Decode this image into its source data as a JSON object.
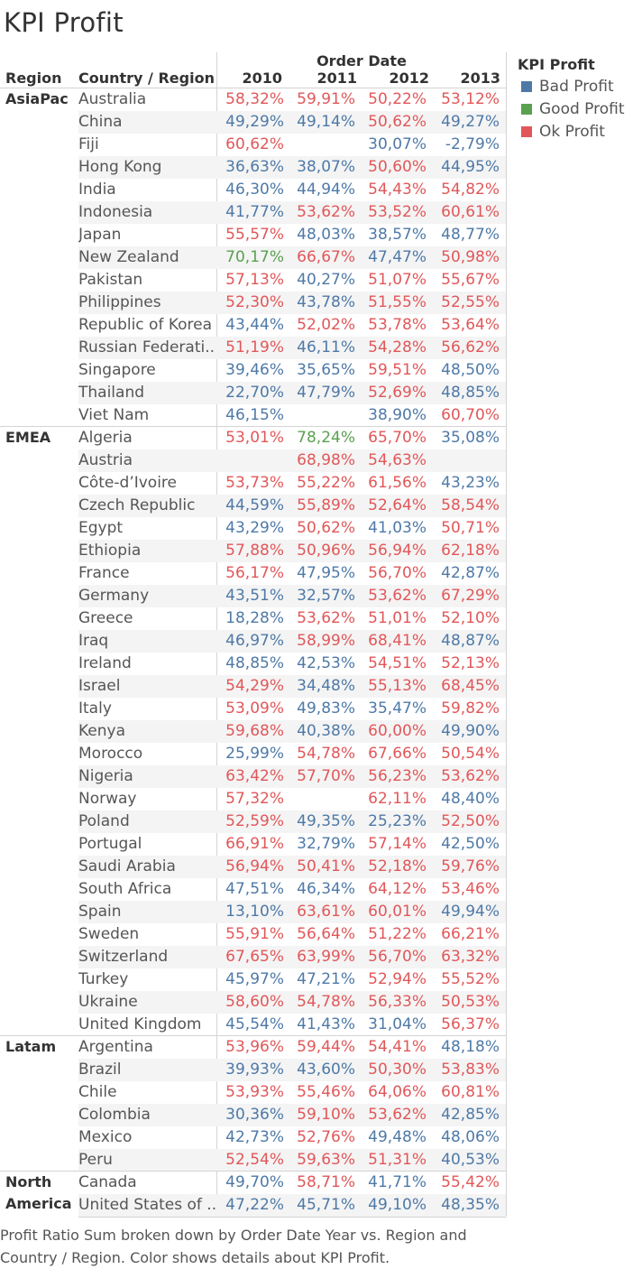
{
  "title": "KPI Profit",
  "header": {
    "region": "Region",
    "country": "Country / Region",
    "column_group": "Order Date",
    "years": [
      "2010",
      "2011",
      "2012",
      "2013"
    ]
  },
  "legend": {
    "title": "KPI Profit",
    "items": [
      {
        "label": "Bad Profit",
        "color": "#4e79a7"
      },
      {
        "label": "Good Profit",
        "color": "#59a14f"
      },
      {
        "label": "Ok Profit",
        "color": "#e15759"
      }
    ]
  },
  "caption_line1": "Profit Ratio Sum broken down by Order Date Year vs. Region and",
  "caption_line2": "Country / Region.  Color shows details about KPI Profit.",
  "chart_data": {
    "type": "table",
    "title": "KPI Profit",
    "columns": [
      "2010",
      "2011",
      "2012",
      "2013"
    ],
    "kpi_colors": {
      "B": "#4e79a7",
      "G": "#59a14f",
      "O": "#e15759"
    },
    "regions": [
      {
        "name": "AsiaPac",
        "rows": [
          {
            "country": "Australia",
            "values": [
              "58,32%",
              "59,91%",
              "50,22%",
              "53,12%"
            ],
            "kpi": [
              "O",
              "O",
              "O",
              "O"
            ]
          },
          {
            "country": "China",
            "values": [
              "49,29%",
              "49,14%",
              "50,62%",
              "49,27%"
            ],
            "kpi": [
              "B",
              "B",
              "O",
              "B"
            ]
          },
          {
            "country": "Fiji",
            "values": [
              "60,62%",
              "",
              "30,07%",
              "-2,79%"
            ],
            "kpi": [
              "O",
              "",
              "B",
              "B"
            ]
          },
          {
            "country": "Hong Kong",
            "values": [
              "36,63%",
              "38,07%",
              "50,60%",
              "44,95%"
            ],
            "kpi": [
              "B",
              "B",
              "O",
              "B"
            ]
          },
          {
            "country": "India",
            "values": [
              "46,30%",
              "44,94%",
              "54,43%",
              "54,82%"
            ],
            "kpi": [
              "B",
              "B",
              "O",
              "O"
            ]
          },
          {
            "country": "Indonesia",
            "values": [
              "41,77%",
              "53,62%",
              "53,52%",
              "60,61%"
            ],
            "kpi": [
              "B",
              "O",
              "O",
              "O"
            ]
          },
          {
            "country": "Japan",
            "values": [
              "55,57%",
              "48,03%",
              "38,57%",
              "48,77%"
            ],
            "kpi": [
              "O",
              "B",
              "B",
              "B"
            ]
          },
          {
            "country": "New Zealand",
            "values": [
              "70,17%",
              "66,67%",
              "47,47%",
              "50,98%"
            ],
            "kpi": [
              "G",
              "O",
              "B",
              "O"
            ]
          },
          {
            "country": "Pakistan",
            "values": [
              "57,13%",
              "40,27%",
              "51,07%",
              "55,67%"
            ],
            "kpi": [
              "O",
              "B",
              "O",
              "O"
            ]
          },
          {
            "country": "Philippines",
            "values": [
              "52,30%",
              "43,78%",
              "51,55%",
              "52,55%"
            ],
            "kpi": [
              "O",
              "B",
              "O",
              "O"
            ]
          },
          {
            "country": "Republic of Korea",
            "values": [
              "43,44%",
              "52,02%",
              "53,78%",
              "53,64%"
            ],
            "kpi": [
              "B",
              "O",
              "O",
              "O"
            ]
          },
          {
            "country": "Russian Federati..",
            "values": [
              "51,19%",
              "46,11%",
              "54,28%",
              "56,62%"
            ],
            "kpi": [
              "O",
              "B",
              "O",
              "O"
            ]
          },
          {
            "country": "Singapore",
            "values": [
              "39,46%",
              "35,65%",
              "59,51%",
              "48,50%"
            ],
            "kpi": [
              "B",
              "B",
              "O",
              "B"
            ]
          },
          {
            "country": "Thailand",
            "values": [
              "22,70%",
              "47,79%",
              "52,69%",
              "48,85%"
            ],
            "kpi": [
              "B",
              "B",
              "O",
              "B"
            ]
          },
          {
            "country": "Viet Nam",
            "values": [
              "46,15%",
              "",
              "38,90%",
              "60,70%"
            ],
            "kpi": [
              "B",
              "",
              "B",
              "O"
            ]
          }
        ]
      },
      {
        "name": "EMEA",
        "rows": [
          {
            "country": "Algeria",
            "values": [
              "53,01%",
              "78,24%",
              "65,70%",
              "35,08%"
            ],
            "kpi": [
              "O",
              "G",
              "O",
              "B"
            ]
          },
          {
            "country": "Austria",
            "values": [
              "",
              "68,98%",
              "54,63%",
              ""
            ],
            "kpi": [
              "",
              "O",
              "O",
              ""
            ]
          },
          {
            "country": "Côte-d’Ivoire",
            "values": [
              "53,73%",
              "55,22%",
              "61,56%",
              "43,23%"
            ],
            "kpi": [
              "O",
              "O",
              "O",
              "B"
            ]
          },
          {
            "country": "Czech Republic",
            "values": [
              "44,59%",
              "55,89%",
              "52,64%",
              "58,54%"
            ],
            "kpi": [
              "B",
              "O",
              "O",
              "O"
            ]
          },
          {
            "country": "Egypt",
            "values": [
              "43,29%",
              "50,62%",
              "41,03%",
              "50,71%"
            ],
            "kpi": [
              "B",
              "O",
              "B",
              "O"
            ]
          },
          {
            "country": "Ethiopia",
            "values": [
              "57,88%",
              "50,96%",
              "56,94%",
              "62,18%"
            ],
            "kpi": [
              "O",
              "O",
              "O",
              "O"
            ]
          },
          {
            "country": "France",
            "values": [
              "56,17%",
              "47,95%",
              "56,70%",
              "42,87%"
            ],
            "kpi": [
              "O",
              "B",
              "O",
              "B"
            ]
          },
          {
            "country": "Germany",
            "values": [
              "43,51%",
              "32,57%",
              "53,62%",
              "67,29%"
            ],
            "kpi": [
              "B",
              "B",
              "O",
              "O"
            ]
          },
          {
            "country": "Greece",
            "values": [
              "18,28%",
              "53,62%",
              "51,01%",
              "52,10%"
            ],
            "kpi": [
              "B",
              "O",
              "O",
              "O"
            ]
          },
          {
            "country": "Iraq",
            "values": [
              "46,97%",
              "58,99%",
              "68,41%",
              "48,87%"
            ],
            "kpi": [
              "B",
              "O",
              "O",
              "B"
            ]
          },
          {
            "country": "Ireland",
            "values": [
              "48,85%",
              "42,53%",
              "54,51%",
              "52,13%"
            ],
            "kpi": [
              "B",
              "B",
              "O",
              "O"
            ]
          },
          {
            "country": "Israel",
            "values": [
              "54,29%",
              "34,48%",
              "55,13%",
              "68,45%"
            ],
            "kpi": [
              "O",
              "B",
              "O",
              "O"
            ]
          },
          {
            "country": "Italy",
            "values": [
              "53,09%",
              "49,83%",
              "35,47%",
              "59,82%"
            ],
            "kpi": [
              "O",
              "B",
              "B",
              "O"
            ]
          },
          {
            "country": "Kenya",
            "values": [
              "59,68%",
              "40,38%",
              "60,00%",
              "49,90%"
            ],
            "kpi": [
              "O",
              "B",
              "O",
              "B"
            ]
          },
          {
            "country": "Morocco",
            "values": [
              "25,99%",
              "54,78%",
              "67,66%",
              "50,54%"
            ],
            "kpi": [
              "B",
              "O",
              "O",
              "O"
            ]
          },
          {
            "country": "Nigeria",
            "values": [
              "63,42%",
              "57,70%",
              "56,23%",
              "53,62%"
            ],
            "kpi": [
              "O",
              "O",
              "O",
              "O"
            ]
          },
          {
            "country": "Norway",
            "values": [
              "57,32%",
              "",
              "62,11%",
              "48,40%"
            ],
            "kpi": [
              "O",
              "",
              "O",
              "B"
            ]
          },
          {
            "country": "Poland",
            "values": [
              "52,59%",
              "49,35%",
              "25,23%",
              "52,50%"
            ],
            "kpi": [
              "O",
              "B",
              "B",
              "O"
            ]
          },
          {
            "country": "Portugal",
            "values": [
              "66,91%",
              "32,79%",
              "57,14%",
              "42,50%"
            ],
            "kpi": [
              "O",
              "B",
              "O",
              "B"
            ]
          },
          {
            "country": "Saudi Arabia",
            "values": [
              "56,94%",
              "50,41%",
              "52,18%",
              "59,76%"
            ],
            "kpi": [
              "O",
              "O",
              "O",
              "O"
            ]
          },
          {
            "country": "South Africa",
            "values": [
              "47,51%",
              "46,34%",
              "64,12%",
              "53,46%"
            ],
            "kpi": [
              "B",
              "B",
              "O",
              "O"
            ]
          },
          {
            "country": "Spain",
            "values": [
              "13,10%",
              "63,61%",
              "60,01%",
              "49,94%"
            ],
            "kpi": [
              "B",
              "O",
              "O",
              "B"
            ]
          },
          {
            "country": "Sweden",
            "values": [
              "55,91%",
              "56,64%",
              "51,22%",
              "66,21%"
            ],
            "kpi": [
              "O",
              "O",
              "O",
              "O"
            ]
          },
          {
            "country": "Switzerland",
            "values": [
              "67,65%",
              "63,99%",
              "56,70%",
              "63,32%"
            ],
            "kpi": [
              "O",
              "O",
              "O",
              "O"
            ]
          },
          {
            "country": "Turkey",
            "values": [
              "45,97%",
              "47,21%",
              "52,94%",
              "55,52%"
            ],
            "kpi": [
              "B",
              "B",
              "O",
              "O"
            ]
          },
          {
            "country": "Ukraine",
            "values": [
              "58,60%",
              "54,78%",
              "56,33%",
              "50,53%"
            ],
            "kpi": [
              "O",
              "O",
              "O",
              "O"
            ]
          },
          {
            "country": "United Kingdom",
            "values": [
              "45,54%",
              "41,43%",
              "31,04%",
              "56,37%"
            ],
            "kpi": [
              "B",
              "B",
              "B",
              "O"
            ]
          }
        ]
      },
      {
        "name": "Latam",
        "rows": [
          {
            "country": "Argentina",
            "values": [
              "53,96%",
              "59,44%",
              "54,41%",
              "48,18%"
            ],
            "kpi": [
              "O",
              "O",
              "O",
              "B"
            ]
          },
          {
            "country": "Brazil",
            "values": [
              "39,93%",
              "43,60%",
              "50,30%",
              "53,83%"
            ],
            "kpi": [
              "B",
              "B",
              "O",
              "O"
            ]
          },
          {
            "country": "Chile",
            "values": [
              "53,93%",
              "55,46%",
              "64,06%",
              "60,81%"
            ],
            "kpi": [
              "O",
              "O",
              "O",
              "O"
            ]
          },
          {
            "country": "Colombia",
            "values": [
              "30,36%",
              "59,10%",
              "53,62%",
              "42,85%"
            ],
            "kpi": [
              "B",
              "O",
              "O",
              "B"
            ]
          },
          {
            "country": "Mexico",
            "values": [
              "42,73%",
              "52,76%",
              "49,48%",
              "48,06%"
            ],
            "kpi": [
              "B",
              "O",
              "B",
              "B"
            ]
          },
          {
            "country": "Peru",
            "values": [
              "52,54%",
              "59,63%",
              "51,31%",
              "40,53%"
            ],
            "kpi": [
              "O",
              "O",
              "O",
              "B"
            ]
          }
        ]
      },
      {
        "name": "North America",
        "rows": [
          {
            "country": "Canada",
            "values": [
              "49,70%",
              "58,71%",
              "41,71%",
              "55,42%"
            ],
            "kpi": [
              "B",
              "O",
              "B",
              "O"
            ]
          },
          {
            "country": "United States of ..",
            "values": [
              "47,22%",
              "45,71%",
              "49,10%",
              "48,35%"
            ],
            "kpi": [
              "B",
              "B",
              "B",
              "B"
            ]
          }
        ]
      }
    ]
  }
}
